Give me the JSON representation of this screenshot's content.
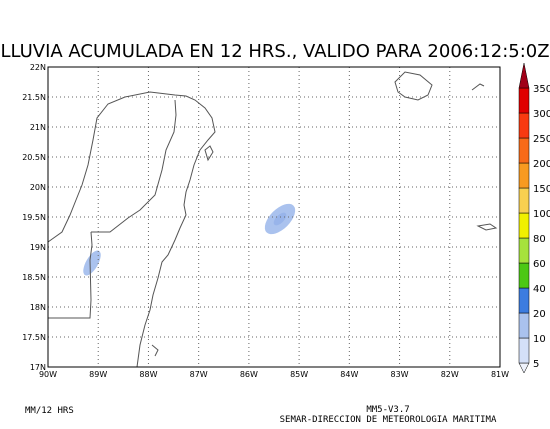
{
  "title": "LLUVIA ACUMULADA EN 12 HRS., VALIDO PARA 2006:12:5:0Z",
  "map": {
    "lat_labels": [
      "22N",
      "21.5N",
      "21N",
      "20.5N",
      "20N",
      "19.5N",
      "19N",
      "18.5N",
      "18N",
      "17.5N",
      "17N"
    ],
    "lon_labels": [
      "90W",
      "89W",
      "88W",
      "87W",
      "86W",
      "85W",
      "84W",
      "83W",
      "82W",
      "81W"
    ]
  },
  "colorbar": {
    "labels": [
      5,
      10,
      20,
      40,
      60,
      80,
      100,
      150,
      200,
      250,
      300,
      350
    ],
    "colors": [
      "#eef2fc",
      "#d4e0f8",
      "#aac2ee",
      "#3c7ce0",
      "#4cc814",
      "#a6e23c",
      "#f0f000",
      "#f8d050",
      "#f89a20",
      "#f86a18",
      "#f83a10",
      "#e00000",
      "#a00018"
    ]
  },
  "footer": {
    "units": "MM/12 HRS",
    "model": "MM5-V3.7",
    "agency": "SEMAR-DIRECCION DE METEOROLOGIA MARITIMA"
  }
}
